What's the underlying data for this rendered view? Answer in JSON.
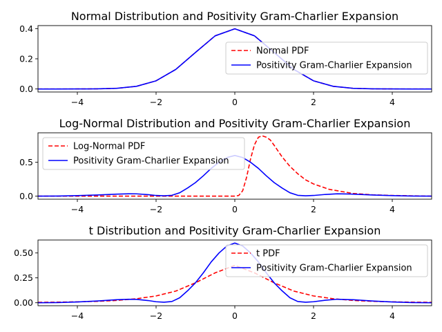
{
  "chart_data": [
    {
      "type": "line",
      "title": "Normal Distribution and Positivity Gram-Charlier Expansion",
      "xlabel": "",
      "ylabel": "",
      "xlim": [
        -5,
        5
      ],
      "ylim": [
        -0.02,
        0.42
      ],
      "xticks": [
        -4,
        -2,
        0,
        2,
        4
      ],
      "xtick_labels": [
        "−4",
        "−2",
        "0",
        "2",
        "4"
      ],
      "yticks": [
        0.0,
        0.2,
        0.4
      ],
      "ytick_labels": [
        "0.0",
        "0.2",
        "0.4"
      ],
      "grid": false,
      "legend_position": "center-right",
      "series": [
        {
          "name": "Normal PDF",
          "color": "#ff0000",
          "style": "dashed",
          "x": [
            -5,
            -4.5,
            -4,
            -3.5,
            -3,
            -2.5,
            -2,
            -1.5,
            -1,
            -0.5,
            0,
            0.5,
            1,
            1.5,
            2,
            2.5,
            3,
            3.5,
            4,
            4.5,
            5
          ],
          "y": [
            0.0,
            0.0,
            0.0001,
            0.0009,
            0.0044,
            0.0175,
            0.054,
            0.1295,
            0.242,
            0.3521,
            0.3989,
            0.3521,
            0.242,
            0.1295,
            0.054,
            0.0175,
            0.0044,
            0.0009,
            0.0001,
            0.0,
            0.0
          ]
        },
        {
          "name": "Positivity Gram-Charlier Expansion",
          "color": "#0000ff",
          "style": "solid",
          "x": [
            -5,
            -4.5,
            -4,
            -3.5,
            -3,
            -2.5,
            -2,
            -1.5,
            -1,
            -0.5,
            0,
            0.5,
            1,
            1.5,
            2,
            2.5,
            3,
            3.5,
            4,
            4.5,
            5
          ],
          "y": [
            0.0,
            0.0,
            0.0001,
            0.0009,
            0.0044,
            0.0175,
            0.054,
            0.1295,
            0.242,
            0.3521,
            0.3989,
            0.3521,
            0.242,
            0.1295,
            0.054,
            0.0175,
            0.0044,
            0.0009,
            0.0001,
            0.0,
            0.0
          ]
        }
      ]
    },
    {
      "type": "line",
      "title": "Log-Normal Distribution and Positivity Gram-Charlier Expansion",
      "xlabel": "",
      "ylabel": "",
      "xlim": [
        -5,
        5
      ],
      "ylim": [
        -0.045,
        0.935
      ],
      "xticks": [
        -4,
        -2,
        0,
        2,
        4
      ],
      "xtick_labels": [
        "−4",
        "−2",
        "0",
        "2",
        "4"
      ],
      "yticks": [
        0.0,
        0.5
      ],
      "ytick_labels": [
        "0.0",
        "0.5"
      ],
      "grid": false,
      "legend_position": "upper-left",
      "series": [
        {
          "name": "Log-Normal PDF",
          "color": "#ff0000",
          "style": "dashed",
          "x": [
            -5,
            -1,
            0,
            0.1,
            0.2,
            0.3,
            0.4,
            0.5,
            0.6,
            0.7,
            0.8,
            0.9,
            1.0,
            1.2,
            1.4,
            1.6,
            1.8,
            2.0,
            2.4,
            3.0,
            3.5,
            4.0,
            5.0
          ],
          "y": [
            0.0,
            0.0,
            0.0,
            0.01,
            0.08,
            0.28,
            0.55,
            0.76,
            0.87,
            0.89,
            0.87,
            0.83,
            0.75,
            0.58,
            0.44,
            0.33,
            0.24,
            0.18,
            0.1,
            0.04,
            0.02,
            0.01,
            0.0
          ]
        },
        {
          "name": "Positivity Gram-Charlier Expansion",
          "color": "#0000ff",
          "style": "solid",
          "x": [
            -5,
            -4.5,
            -4,
            -3.5,
            -3,
            -2.7,
            -2.5,
            -2.2,
            -2.0,
            -1.8,
            -1.6,
            -1.4,
            -1.2,
            -1.0,
            -0.8,
            -0.6,
            -0.4,
            -0.2,
            0.0,
            0.2,
            0.4,
            0.6,
            0.8,
            1.0,
            1.2,
            1.4,
            1.6,
            1.8,
            2.0,
            2.3,
            2.6,
            3.0,
            3.5,
            4.0,
            4.5,
            5.0
          ],
          "y": [
            0.0,
            0.002,
            0.008,
            0.017,
            0.03,
            0.035,
            0.034,
            0.022,
            0.01,
            0.005,
            0.012,
            0.05,
            0.12,
            0.2,
            0.3,
            0.41,
            0.5,
            0.57,
            0.6,
            0.57,
            0.5,
            0.41,
            0.3,
            0.2,
            0.12,
            0.05,
            0.012,
            0.005,
            0.01,
            0.025,
            0.035,
            0.03,
            0.017,
            0.008,
            0.002,
            0.0
          ]
        }
      ]
    },
    {
      "type": "line",
      "title": "t Distribution and Positivity Gram-Charlier Expansion",
      "xlabel": "",
      "ylabel": "",
      "xlim": [
        -5,
        5
      ],
      "ylim": [
        -0.03,
        0.63
      ],
      "xticks": [
        -4,
        -2,
        0,
        2,
        4
      ],
      "xtick_labels": [
        "−4",
        "−2",
        "0",
        "2",
        "4"
      ],
      "yticks": [
        0.0,
        0.25,
        0.5
      ],
      "ytick_labels": [
        "0.00",
        "0.25",
        "0.50"
      ],
      "grid": false,
      "legend_position": "upper-right",
      "series": [
        {
          "name": "t PDF",
          "color": "#ff0000",
          "style": "dashed",
          "x": [
            -5,
            -4.5,
            -4,
            -3.5,
            -3,
            -2.5,
            -2,
            -1.5,
            -1,
            -0.5,
            0,
            0.5,
            1,
            1.5,
            2,
            2.5,
            3,
            3.5,
            4,
            4.5,
            5
          ],
          "y": [
            0.004,
            0.006,
            0.009,
            0.014,
            0.023,
            0.04,
            0.068,
            0.117,
            0.2,
            0.3,
            0.375,
            0.3,
            0.2,
            0.117,
            0.068,
            0.04,
            0.023,
            0.014,
            0.009,
            0.006,
            0.004
          ]
        },
        {
          "name": "Positivity Gram-Charlier Expansion",
          "color": "#0000ff",
          "style": "solid",
          "x": [
            -5,
            -4.5,
            -4,
            -3.5,
            -3,
            -2.7,
            -2.5,
            -2.2,
            -2.0,
            -1.8,
            -1.6,
            -1.4,
            -1.2,
            -1.0,
            -0.8,
            -0.6,
            -0.4,
            -0.2,
            0.0,
            0.2,
            0.4,
            0.6,
            0.8,
            1.0,
            1.2,
            1.4,
            1.6,
            1.8,
            2.0,
            2.3,
            2.6,
            3.0,
            3.5,
            4.0,
            4.5,
            5.0
          ],
          "y": [
            0.0,
            0.002,
            0.008,
            0.017,
            0.03,
            0.035,
            0.034,
            0.022,
            0.01,
            0.005,
            0.012,
            0.05,
            0.12,
            0.2,
            0.3,
            0.41,
            0.5,
            0.57,
            0.6,
            0.57,
            0.5,
            0.41,
            0.3,
            0.2,
            0.12,
            0.05,
            0.012,
            0.005,
            0.01,
            0.025,
            0.035,
            0.03,
            0.017,
            0.008,
            0.002,
            0.0
          ]
        }
      ]
    }
  ]
}
